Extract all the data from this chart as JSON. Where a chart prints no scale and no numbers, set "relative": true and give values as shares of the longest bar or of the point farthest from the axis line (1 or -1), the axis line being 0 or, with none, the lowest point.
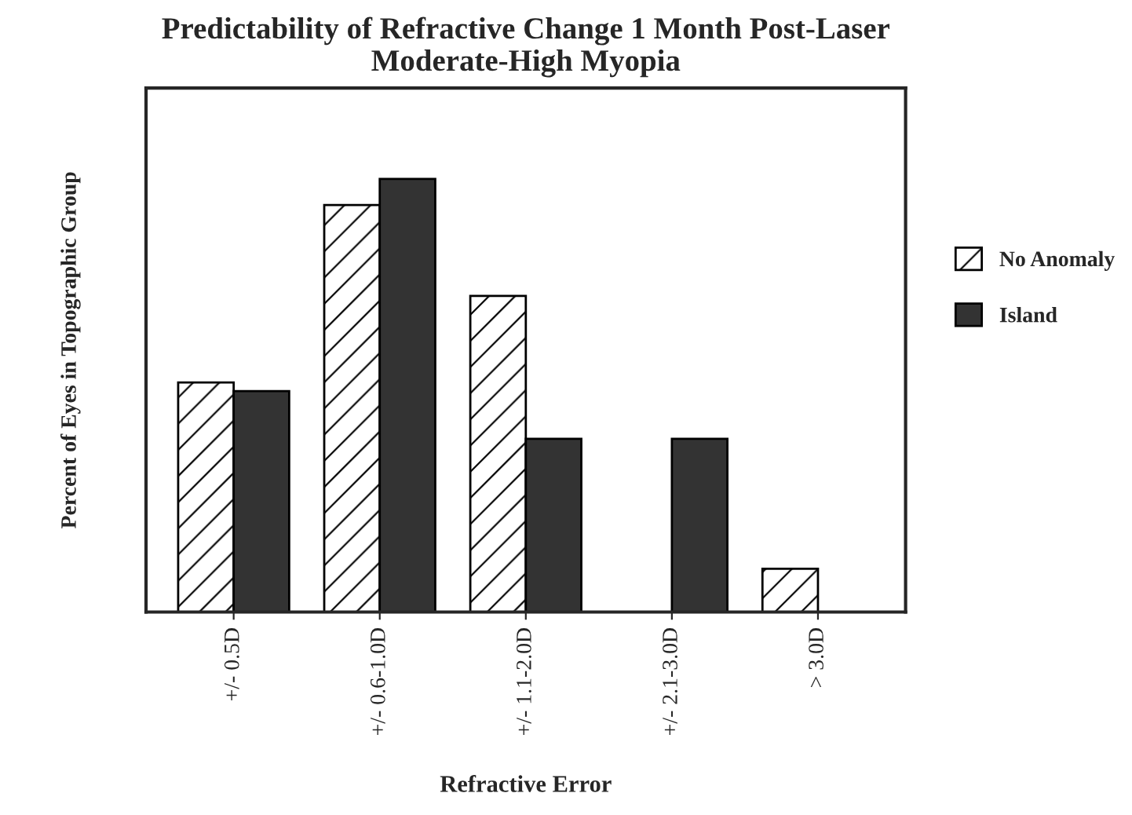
{
  "chart_data": {
    "type": "bar",
    "title": "Predictability of Refractive Change 1 Month Post-Laser\nModerate-High Myopia",
    "xlabel": "Refractive Error",
    "ylabel": "Percent of Eyes in Topographic Group",
    "categories": [
      "+/- 0.5D",
      "+/- 0.6-1.0D",
      "+/- 1.1-2.0D",
      "+/- 2.1-3.0D",
      "> 3.0D"
    ],
    "relative": true,
    "series": [
      {
        "name": "No Anomaly",
        "color": "#ffffff",
        "values": [
          0.53,
          0.94,
          0.73,
          0,
          0.1
        ]
      },
      {
        "name": "Island",
        "color": "#333333",
        "values": [
          0.51,
          1,
          0.4,
          0.4,
          0
        ]
      }
    ],
    "legend": "right",
    "grid": false
  }
}
